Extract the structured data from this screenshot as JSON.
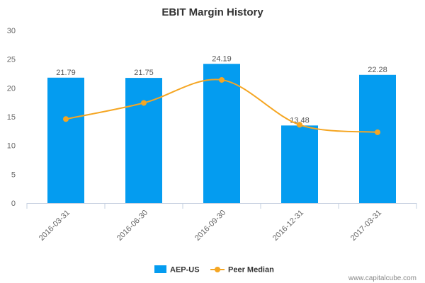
{
  "chart_data": {
    "type": "bar",
    "title": "EBIT Margin History",
    "categories": [
      "2016-03-31",
      "2016-06-30",
      "2016-09-30",
      "2016-12-31",
      "2017-03-31"
    ],
    "series": [
      {
        "name": "AEP-US",
        "type": "bar",
        "color": "#049cf0",
        "values": [
          21.79,
          21.75,
          24.19,
          13.48,
          22.28
        ],
        "data_labels": [
          "21.79",
          "21.75",
          "24.19",
          "13.48",
          "22.28"
        ]
      },
      {
        "name": "Peer Median",
        "type": "line",
        "color": "#f5a623",
        "values": [
          14.6,
          17.4,
          21.4,
          13.6,
          12.3
        ]
      }
    ],
    "ylim": [
      0,
      30
    ],
    "yticks": [
      0,
      5,
      10,
      15,
      20,
      25,
      30
    ],
    "grid": false,
    "legend": "bottom-center"
  },
  "watermark": "www.capitalcube.com"
}
